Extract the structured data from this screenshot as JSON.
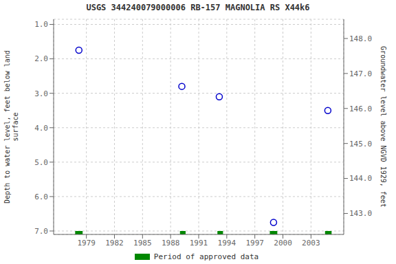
{
  "chart_data": {
    "type": "scatter",
    "title": "USGS 344240079000006 RB-157 MAGNOLIA RS X44k6",
    "ylabel": "Depth to water level, feet below land\nsurface",
    "y2label": "Groundwater level above NGVD 1929, feet",
    "series": [
      {
        "type": "scatter",
        "color": "#0000cc",
        "marker": "open_circle",
        "x": [
          1978.2,
          1989.2,
          1993.2,
          1999.0,
          2004.8
        ],
        "values": [
          1.75,
          2.8,
          3.1,
          6.75,
          3.5
        ]
      },
      {
        "type": "range",
        "name": "Period of approved data",
        "color": "#008800",
        "ranges": [
          [
            1977.8,
            1978.6
          ],
          [
            1989.0,
            1989.6
          ],
          [
            1993.0,
            1993.6
          ],
          [
            1998.6,
            1999.4
          ],
          [
            2004.5,
            2005.2
          ]
        ],
        "y": 7.05
      }
    ],
    "xlim": [
      1975.5,
      2006.5
    ],
    "xticks": [
      1979,
      1982,
      1985,
      1988,
      1991,
      1994,
      1997,
      2000,
      2003
    ],
    "ylim": [
      7.1,
      0.85
    ],
    "yticks": [
      {
        "value": 1.0,
        "label": "1.0"
      },
      {
        "value": 2.0,
        "label": "2.0"
      },
      {
        "value": 3.0,
        "label": "3.0"
      },
      {
        "value": 4.0,
        "label": "4.0"
      },
      {
        "value": 5.0,
        "label": "5.0"
      },
      {
        "value": 6.0,
        "label": "6.0"
      },
      {
        "value": 7.0,
        "label": "7.0"
      }
    ],
    "y2lim": [
      142.4,
      148.55
    ],
    "y2ticks": [
      {
        "value": 143.0,
        "label": "143.0"
      },
      {
        "value": 144.0,
        "label": "144.0"
      },
      {
        "value": 145.0,
        "label": "145.0"
      },
      {
        "value": 146.0,
        "label": "146.0"
      },
      {
        "value": 147.0,
        "label": "147.0"
      },
      {
        "value": 148.0,
        "label": "148.0"
      }
    ],
    "grid": true
  }
}
